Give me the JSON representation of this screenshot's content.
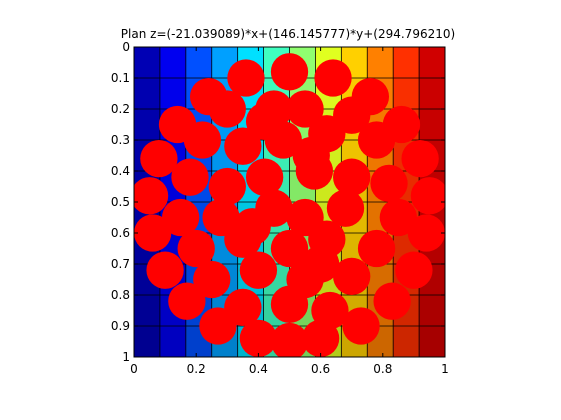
{
  "chart_data": {
    "type": "heatmap",
    "title": "Plan z=(-21.039089)*x+(146.145777)*y+(294.796210)",
    "xlabel": "",
    "ylabel": "",
    "xlim": [
      0,
      1
    ],
    "ylim": [
      0,
      1
    ],
    "y_axis_direction": "reversed",
    "x_ticks": [
      "0",
      "0.2",
      "0.4",
      "0.6",
      "0.8",
      "1"
    ],
    "y_ticks": [
      "0",
      "0.1",
      "0.2",
      "0.3",
      "0.4",
      "0.5",
      "0.6",
      "0.7",
      "0.8",
      "0.9",
      "1"
    ],
    "grid": true,
    "colormap_columns": [
      "#0000b4",
      "#0000f0",
      "#0050ff",
      "#00a0ff",
      "#00e0ff",
      "#40ffc0",
      "#90ff70",
      "#e0ff20",
      "#ffd000",
      "#ff8000",
      "#ff3000",
      "#d00000"
    ],
    "row_shade_bottom": "#000090",
    "marker_color": "#ff0000",
    "marker_radius_data": 0.06,
    "overlay_points": [
      [
        0.5,
        0.08
      ],
      [
        0.36,
        0.1
      ],
      [
        0.64,
        0.1
      ],
      [
        0.24,
        0.16
      ],
      [
        0.76,
        0.16
      ],
      [
        0.14,
        0.25
      ],
      [
        0.86,
        0.25
      ],
      [
        0.08,
        0.36
      ],
      [
        0.92,
        0.36
      ],
      [
        0.05,
        0.48
      ],
      [
        0.95,
        0.48
      ],
      [
        0.06,
        0.6
      ],
      [
        0.94,
        0.6
      ],
      [
        0.1,
        0.72
      ],
      [
        0.9,
        0.72
      ],
      [
        0.17,
        0.82
      ],
      [
        0.83,
        0.82
      ],
      [
        0.27,
        0.9
      ],
      [
        0.73,
        0.9
      ],
      [
        0.4,
        0.94
      ],
      [
        0.6,
        0.94
      ],
      [
        0.5,
        0.95
      ],
      [
        0.3,
        0.2
      ],
      [
        0.45,
        0.2
      ],
      [
        0.55,
        0.2
      ],
      [
        0.7,
        0.22
      ],
      [
        0.22,
        0.3
      ],
      [
        0.35,
        0.32
      ],
      [
        0.48,
        0.3
      ],
      [
        0.62,
        0.28
      ],
      [
        0.78,
        0.3
      ],
      [
        0.18,
        0.42
      ],
      [
        0.3,
        0.45
      ],
      [
        0.42,
        0.42
      ],
      [
        0.58,
        0.4
      ],
      [
        0.7,
        0.42
      ],
      [
        0.82,
        0.44
      ],
      [
        0.15,
        0.55
      ],
      [
        0.28,
        0.55
      ],
      [
        0.45,
        0.52
      ],
      [
        0.55,
        0.55
      ],
      [
        0.68,
        0.52
      ],
      [
        0.85,
        0.55
      ],
      [
        0.2,
        0.65
      ],
      [
        0.35,
        0.62
      ],
      [
        0.5,
        0.65
      ],
      [
        0.62,
        0.62
      ],
      [
        0.78,
        0.65
      ],
      [
        0.25,
        0.75
      ],
      [
        0.4,
        0.72
      ],
      [
        0.55,
        0.75
      ],
      [
        0.7,
        0.74
      ],
      [
        0.35,
        0.84
      ],
      [
        0.5,
        0.83
      ],
      [
        0.63,
        0.85
      ],
      [
        0.42,
        0.24
      ],
      [
        0.57,
        0.35
      ],
      [
        0.38,
        0.58
      ],
      [
        0.6,
        0.7
      ]
    ]
  }
}
